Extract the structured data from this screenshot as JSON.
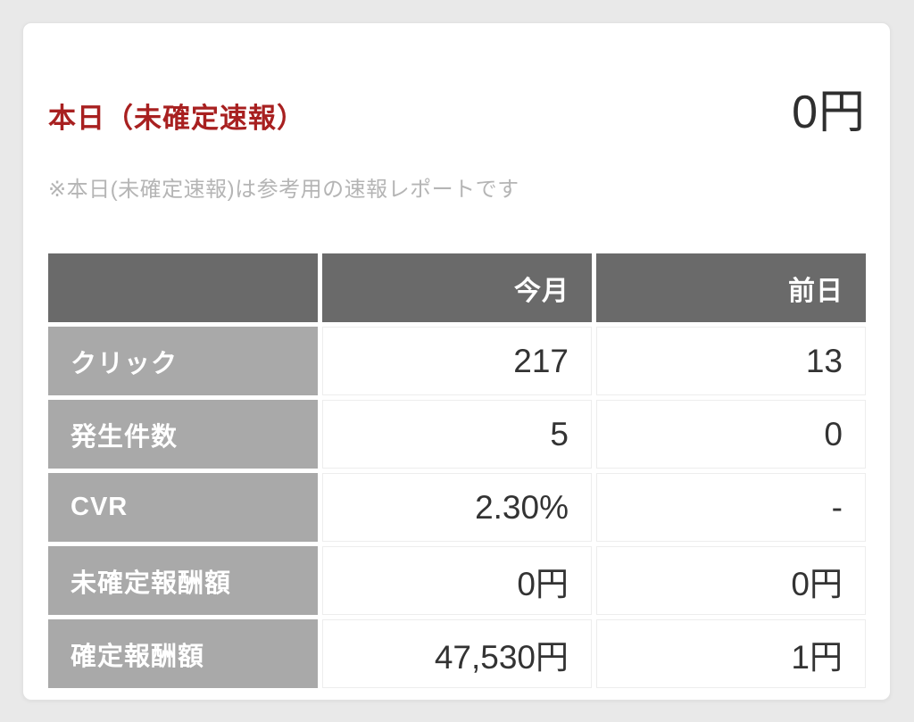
{
  "report_card": {
    "title": "本日（未確定速報）",
    "total_amount": "0円",
    "note": "※本日(未確定速報)は参考用の速報レポートです"
  },
  "table": {
    "headers": {
      "metric": "",
      "this_month": "今月",
      "prev_day": "前日"
    },
    "rows": [
      {
        "label": "クリック",
        "this_month": "217",
        "prev_day": "13"
      },
      {
        "label": "発生件数",
        "this_month": "5",
        "prev_day": "0"
      },
      {
        "label": "CVR",
        "this_month": "2.30%",
        "prev_day": "-"
      },
      {
        "label": "未確定報酬額",
        "this_month": "0円",
        "prev_day": "0円"
      },
      {
        "label": "確定報酬額",
        "this_month": "47,530円",
        "prev_day": "1円"
      }
    ]
  },
  "colors": {
    "page_background": "#e9e9e9",
    "card_background": "#ffffff",
    "title_red": "#a82020",
    "header_cell_gray": "#6a6a6a",
    "label_cell_gray": "#a9a9a9",
    "value_text": "#333333",
    "note_gray": "#b5b5b5"
  }
}
